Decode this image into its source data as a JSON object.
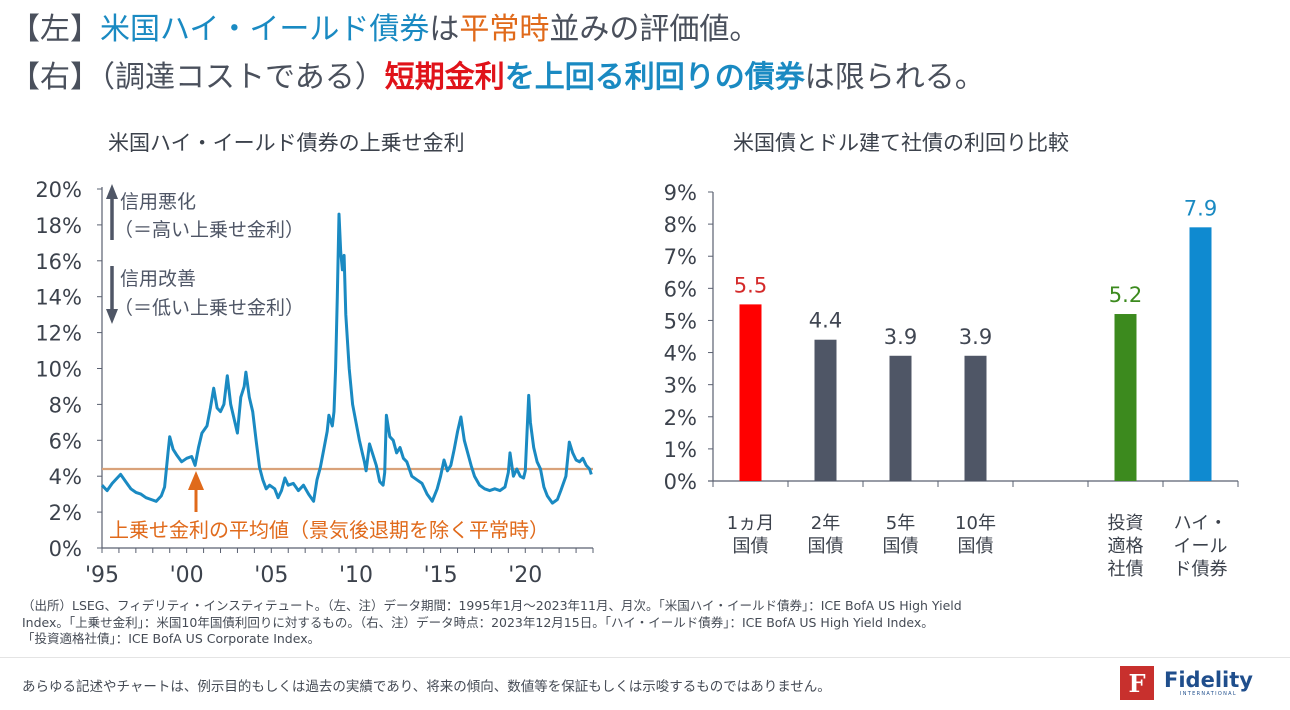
{
  "headline": {
    "line1": [
      {
        "text": "【左】",
        "style": "plain"
      },
      {
        "text": "米国ハイ・イールド債券",
        "style": "blue"
      },
      {
        "text": "は",
        "style": "plain"
      },
      {
        "text": "平常時",
        "style": "orange"
      },
      {
        "text": "並みの評価値。",
        "style": "plain"
      }
    ],
    "line2": [
      {
        "text": "【右】（調達コストである）",
        "style": "plain"
      },
      {
        "text": "短期金利",
        "style": "red"
      },
      {
        "text": "を上回る利回りの債券",
        "style": "blue-bold"
      },
      {
        "text": "は限られる。",
        "style": "plain"
      }
    ]
  },
  "colors": {
    "line": "#1a8ac2",
    "average_line": "#d9a27a",
    "annotation_orange": "#e06a1b",
    "axis": "#5a6070",
    "bar_red": "#ff0000",
    "bar_gray": "#4f5666",
    "bar_green": "#3c8a1e",
    "bar_blue": "#0f8ad0"
  },
  "chart_data": [
    {
      "type": "line",
      "title": "米国ハイ・イールド債券の上乗せ金利",
      "xlabel": "",
      "ylabel": "",
      "ylim": [
        0,
        20
      ],
      "xlim": [
        1995,
        2024
      ],
      "y_ticks": [
        "0%",
        "2%",
        "4%",
        "6%",
        "8%",
        "10%",
        "12%",
        "14%",
        "16%",
        "18%",
        "20%"
      ],
      "x_ticks": [
        {
          "value": 1995,
          "label": "'95"
        },
        {
          "value": 2000,
          "label": "'00"
        },
        {
          "value": 2005,
          "label": "'05"
        },
        {
          "value": 2010,
          "label": "'10"
        },
        {
          "value": 2015,
          "label": "'15"
        },
        {
          "value": 2020,
          "label": "'20"
        }
      ],
      "grid": false,
      "series": [
        {
          "name": "米国ハイ・イールド債券の上乗せ金利",
          "points": [
            [
              1995.0,
              3.5
            ],
            [
              1995.3,
              3.2
            ],
            [
              1995.6,
              3.6
            ],
            [
              1995.9,
              3.9
            ],
            [
              1996.1,
              4.1
            ],
            [
              1996.4,
              3.7
            ],
            [
              1996.7,
              3.3
            ],
            [
              1997.0,
              3.1
            ],
            [
              1997.3,
              3.0
            ],
            [
              1997.6,
              2.8
            ],
            [
              1997.9,
              2.7
            ],
            [
              1998.2,
              2.6
            ],
            [
              1998.5,
              2.9
            ],
            [
              1998.7,
              3.4
            ],
            [
              1998.9,
              5.3
            ],
            [
              1999.0,
              6.2
            ],
            [
              1999.2,
              5.5
            ],
            [
              1999.4,
              5.2
            ],
            [
              1999.7,
              4.8
            ],
            [
              2000.0,
              5.0
            ],
            [
              2000.3,
              5.1
            ],
            [
              2000.5,
              4.6
            ],
            [
              2000.7,
              5.6
            ],
            [
              2000.9,
              6.4
            ],
            [
              2001.2,
              6.8
            ],
            [
              2001.4,
              7.8
            ],
            [
              2001.6,
              8.9
            ],
            [
              2001.8,
              7.8
            ],
            [
              2002.0,
              7.6
            ],
            [
              2002.2,
              8.0
            ],
            [
              2002.4,
              9.6
            ],
            [
              2002.6,
              8.0
            ],
            [
              2002.8,
              7.2
            ],
            [
              2003.0,
              6.4
            ],
            [
              2003.2,
              8.4
            ],
            [
              2003.4,
              9.0
            ],
            [
              2003.5,
              9.8
            ],
            [
              2003.7,
              8.4
            ],
            [
              2003.9,
              7.6
            ],
            [
              2004.1,
              6.0
            ],
            [
              2004.3,
              4.5
            ],
            [
              2004.5,
              3.8
            ],
            [
              2004.7,
              3.3
            ],
            [
              2004.9,
              3.5
            ],
            [
              2005.2,
              3.3
            ],
            [
              2005.4,
              2.8
            ],
            [
              2005.6,
              3.2
            ],
            [
              2005.8,
              3.9
            ],
            [
              2006.0,
              3.5
            ],
            [
              2006.3,
              3.6
            ],
            [
              2006.6,
              3.2
            ],
            [
              2006.9,
              3.5
            ],
            [
              2007.2,
              3.0
            ],
            [
              2007.5,
              2.6
            ],
            [
              2007.7,
              3.8
            ],
            [
              2007.9,
              4.5
            ],
            [
              2008.1,
              5.5
            ],
            [
              2008.3,
              6.5
            ],
            [
              2008.4,
              7.4
            ],
            [
              2008.6,
              6.8
            ],
            [
              2008.7,
              7.6
            ],
            [
              2008.8,
              10.0
            ],
            [
              2008.9,
              14.0
            ],
            [
              2009.0,
              18.6
            ],
            [
              2009.1,
              16.5
            ],
            [
              2009.2,
              15.5
            ],
            [
              2009.3,
              16.3
            ],
            [
              2009.4,
              13.0
            ],
            [
              2009.6,
              10.0
            ],
            [
              2009.8,
              8.0
            ],
            [
              2010.0,
              7.0
            ],
            [
              2010.2,
              6.0
            ],
            [
              2010.4,
              5.2
            ],
            [
              2010.5,
              4.8
            ],
            [
              2010.6,
              4.3
            ],
            [
              2010.8,
              5.8
            ],
            [
              2011.0,
              5.2
            ],
            [
              2011.2,
              4.6
            ],
            [
              2011.4,
              3.7
            ],
            [
              2011.6,
              3.5
            ],
            [
              2011.7,
              4.2
            ],
            [
              2011.8,
              7.4
            ],
            [
              2012.0,
              6.2
            ],
            [
              2012.2,
              6.0
            ],
            [
              2012.4,
              5.3
            ],
            [
              2012.6,
              5.6
            ],
            [
              2012.8,
              5.0
            ],
            [
              2013.0,
              4.8
            ],
            [
              2013.3,
              4.0
            ],
            [
              2013.6,
              3.8
            ],
            [
              2013.9,
              3.6
            ],
            [
              2014.2,
              3.0
            ],
            [
              2014.5,
              2.6
            ],
            [
              2014.8,
              3.3
            ],
            [
              2015.0,
              4.0
            ],
            [
              2015.2,
              4.9
            ],
            [
              2015.4,
              4.3
            ],
            [
              2015.6,
              4.6
            ],
            [
              2015.8,
              5.5
            ],
            [
              2016.0,
              6.5
            ],
            [
              2016.2,
              7.3
            ],
            [
              2016.4,
              6.0
            ],
            [
              2016.6,
              5.3
            ],
            [
              2016.8,
              4.6
            ],
            [
              2017.0,
              4.0
            ],
            [
              2017.3,
              3.5
            ],
            [
              2017.6,
              3.3
            ],
            [
              2017.9,
              3.2
            ],
            [
              2018.2,
              3.3
            ],
            [
              2018.5,
              3.2
            ],
            [
              2018.8,
              3.4
            ],
            [
              2019.0,
              4.2
            ],
            [
              2019.1,
              5.3
            ],
            [
              2019.3,
              4.0
            ],
            [
              2019.5,
              4.4
            ],
            [
              2019.7,
              4.0
            ],
            [
              2019.9,
              3.9
            ],
            [
              2020.0,
              4.3
            ],
            [
              2020.2,
              8.5
            ],
            [
              2020.3,
              7.0
            ],
            [
              2020.5,
              5.6
            ],
            [
              2020.7,
              4.8
            ],
            [
              2020.9,
              4.4
            ],
            [
              2021.1,
              3.4
            ],
            [
              2021.3,
              2.9
            ],
            [
              2021.6,
              2.5
            ],
            [
              2021.9,
              2.7
            ],
            [
              2022.1,
              3.2
            ],
            [
              2022.4,
              4.0
            ],
            [
              2022.6,
              5.9
            ],
            [
              2022.8,
              5.3
            ],
            [
              2023.0,
              4.9
            ],
            [
              2023.2,
              4.8
            ],
            [
              2023.4,
              5.0
            ],
            [
              2023.6,
              4.6
            ],
            [
              2023.8,
              4.4
            ],
            [
              2023.9,
              4.1
            ]
          ]
        }
      ],
      "reference_line": {
        "name": "上乗せ金利の平均値（景気後退期を除く平常時）",
        "value": 4.4
      },
      "annotations": {
        "up_label_1": "信用悪化",
        "up_label_2": "（＝高い上乗せ金利）",
        "down_label_1": "信用改善",
        "down_label_2": "（＝低い上乗せ金利）",
        "average_label": "上乗せ金利の平均値（景気後退期を除く平常時）"
      }
    },
    {
      "type": "bar",
      "title": "米国債とドル建て社債の利回り比較",
      "xlabel": "",
      "ylabel": "",
      "ylim": [
        0,
        9
      ],
      "y_ticks": [
        "0%",
        "1%",
        "2%",
        "3%",
        "4%",
        "5%",
        "6%",
        "7%",
        "8%",
        "9%"
      ],
      "grid": false,
      "categories": [
        [
          "1ヵ月",
          "国債"
        ],
        [
          "2年",
          "国債"
        ],
        [
          "5年",
          "国債"
        ],
        [
          "10年",
          "国債"
        ],
        [],
        [
          "投資",
          "適格",
          "社債"
        ],
        [
          "ハイ・",
          "イール",
          "ド債券"
        ]
      ],
      "values": [
        5.5,
        4.4,
        3.9,
        3.9,
        null,
        5.2,
        7.9
      ],
      "value_labels": [
        "5.5",
        "4.4",
        "3.9",
        "3.9",
        "",
        "5.2",
        "7.9"
      ],
      "bar_colors": [
        "#ff0000",
        "#4f5666",
        "#4f5666",
        "#4f5666",
        "",
        "#3c8a1e",
        "#0f8ad0"
      ],
      "label_colors": [
        "#d42a2a",
        "#404652",
        "#404652",
        "#404652",
        "",
        "#3c8a1e",
        "#1a8ac2"
      ]
    }
  ],
  "notes": {
    "line1": "（出所）LSEG、フィデリティ・インスティテュート。（左、注）データ期間：1995年1月～2023年11月、月次。「米国ハイ・イールド債券」：ICE BofA US High Yield",
    "line2": "Index。「上乗せ金利」：米国10年国債利回りに対するもの。（右、注）データ時点：2023年12月15日。「ハイ・イールド債券」：ICE BofA US High Yield Index。",
    "line3": "「投資適格社債」：ICE BofA US Corporate Index。"
  },
  "footer": {
    "disclaimer": "あらゆる記述やチャートは、例示目的もしくは過去の実績であり、将来の傾向、数値等を保証もしくは示唆するものではありません。",
    "logo_mark": "F",
    "logo_word": "Fidelity",
    "logo_sub": "INTERNATIONAL"
  }
}
